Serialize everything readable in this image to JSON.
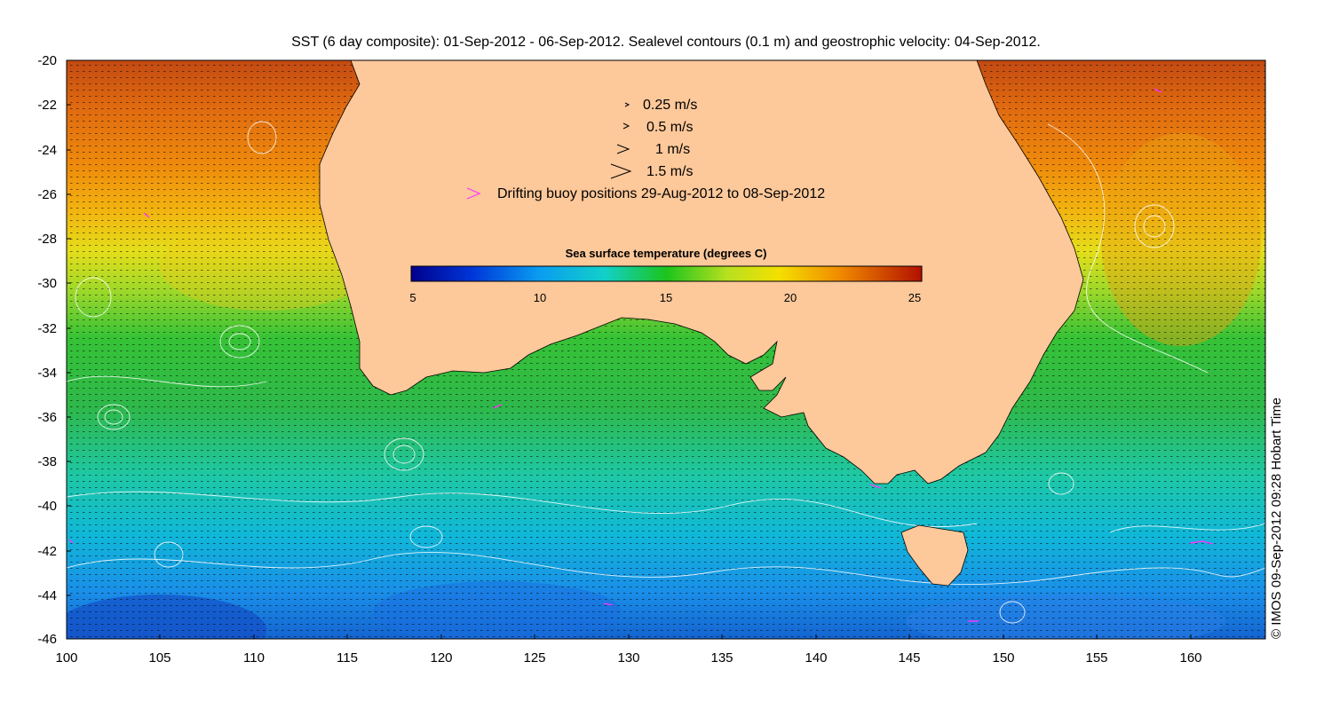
{
  "title": "SST (6 day composite): 01-Sep-2012 - 06-Sep-2012. Sealevel contours (0.1 m) and geostrophic velocity: 04-Sep-2012.",
  "copyright": "© IMOS 09-Sep-2012 09:28 Hobart Time",
  "axes": {
    "x_ticks": [
      "100",
      "105",
      "110",
      "115",
      "120",
      "125",
      "130",
      "135",
      "140",
      "145",
      "150",
      "155",
      "160"
    ],
    "y_ticks": [
      "-20",
      "-22",
      "-24",
      "-26",
      "-28",
      "-30",
      "-32",
      "-34",
      "-36",
      "-38",
      "-40",
      "-42",
      "-44",
      "-46"
    ],
    "lon_range": [
      100,
      164
    ],
    "lat_range": [
      -46,
      -20
    ]
  },
  "legend": {
    "items": [
      {
        "label": "0.25 m/s",
        "scale": 0.25
      },
      {
        "label": "0.5 m/s",
        "scale": 0.5
      },
      {
        "label": "1 m/s",
        "scale": 1
      },
      {
        "label": "1.5 m/s",
        "scale": 1.5
      }
    ],
    "buoy_label": "Drifting buoy positions 29-Aug-2012 to 08-Sep-2012"
  },
  "colorbar": {
    "title": "Sea surface temperature (degrees C)",
    "min": 5,
    "max": 25,
    "ticks": [
      "5",
      "10",
      "15",
      "20",
      "25"
    ]
  },
  "colors": {
    "land": "#fdc89a",
    "buoy": "#ff33ff",
    "contour": "#ffffff",
    "arrow": "#000000"
  }
}
